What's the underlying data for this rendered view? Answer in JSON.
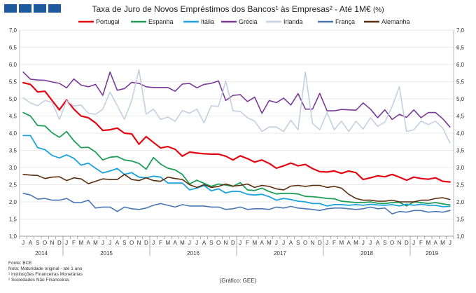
{
  "header": {
    "title_main": "Taxa de Juro de Novos Empréstimos dos Bancos¹ às Empresas² - Até 1M€",
    "title_unit": "(%)"
  },
  "footnotes": {
    "source": "Fonte: BCE",
    "note": "Nota: Maturidade original - até 1 ano",
    "fn1": "¹ Instituições Financeiras Monetárias",
    "fn2": "² Sociedades Não Financeiras"
  },
  "credit": "(Gráfico: GEE)",
  "chart_data": {
    "type": "line",
    "title": "Taxa de Juro de Novos Empréstimos dos Bancos¹ às Empresas² - Até 1M€ (%)",
    "ylim": [
      1.0,
      7.0
    ],
    "ystep": 0.5,
    "yticks": [
      "1,0",
      "1,5",
      "2,0",
      "2,5",
      "3,0",
      "3,5",
      "4,0",
      "4,5",
      "5,0",
      "5,5",
      "6,0",
      "6,5",
      "7,0"
    ],
    "months": [
      "J",
      "A",
      "S",
      "O",
      "N",
      "D",
      "J",
      "F",
      "M",
      "A",
      "M",
      "J",
      "J",
      "A",
      "S",
      "O",
      "N",
      "D",
      "J",
      "F",
      "M",
      "A",
      "M",
      "J",
      "J",
      "A",
      "S",
      "O",
      "N",
      "D",
      "J",
      "F",
      "M",
      "A",
      "M",
      "J",
      "J",
      "A",
      "S",
      "O",
      "N",
      "D",
      "J",
      "F",
      "M",
      "A",
      "M",
      "J",
      "J",
      "A",
      "S",
      "O",
      "N",
      "D",
      "J",
      "F",
      "M",
      "A",
      "M",
      "J"
    ],
    "years": [
      {
        "label": "2014",
        "start": 0,
        "end": 5
      },
      {
        "label": "2015",
        "start": 6,
        "end": 17
      },
      {
        "label": "2016",
        "start": 18,
        "end": 29
      },
      {
        "label": "2017",
        "start": 30,
        "end": 41
      },
      {
        "label": "2018",
        "start": 42,
        "end": 53
      },
      {
        "label": "2019",
        "start": 54,
        "end": 59
      }
    ],
    "series": [
      {
        "name": "Portugal",
        "color": "#e30613",
        "width": 2.2,
        "values": [
          5.47,
          5.42,
          5.2,
          5.22,
          4.95,
          4.68,
          4.97,
          4.7,
          4.5,
          4.45,
          4.3,
          4.08,
          4.1,
          4.15,
          4.0,
          3.98,
          3.68,
          3.9,
          3.73,
          3.57,
          3.61,
          3.53,
          3.33,
          3.45,
          3.42,
          3.4,
          3.39,
          3.39,
          3.33,
          3.22,
          3.34,
          3.26,
          3.16,
          3.22,
          3.12,
          2.98,
          3.05,
          3.13,
          3.05,
          3.09,
          2.97,
          2.88,
          2.87,
          2.9,
          2.83,
          2.9,
          2.85,
          2.65,
          2.7,
          2.76,
          2.73,
          2.8,
          2.72,
          2.63,
          2.72,
          2.68,
          2.66,
          2.7,
          2.6,
          2.58
        ]
      },
      {
        "name": "Espanha",
        "color": "#1e9e57",
        "width": 1.8,
        "values": [
          4.6,
          4.5,
          4.22,
          4.21,
          4.01,
          3.88,
          4.05,
          3.78,
          3.58,
          3.59,
          3.45,
          3.22,
          3.3,
          3.32,
          3.22,
          3.19,
          3.12,
          2.95,
          3.29,
          3.1,
          2.98,
          2.93,
          2.8,
          2.52,
          2.63,
          2.54,
          2.45,
          2.52,
          2.49,
          2.45,
          2.56,
          2.35,
          2.33,
          2.4,
          2.3,
          2.23,
          2.25,
          2.25,
          2.23,
          2.16,
          2.15,
          2.13,
          2.1,
          2.09,
          2.02,
          2.0,
          1.98,
          1.98,
          2.0,
          1.96,
          1.95,
          1.98,
          1.99,
          1.88,
          2.0,
          1.98,
          1.95,
          1.98,
          1.94,
          1.91
        ]
      },
      {
        "name": "Itália",
        "color": "#1aa3dc",
        "width": 1.8,
        "values": [
          3.93,
          3.93,
          3.58,
          3.52,
          3.35,
          3.28,
          3.37,
          3.27,
          3.07,
          3.13,
          2.98,
          2.84,
          2.9,
          2.97,
          2.8,
          2.85,
          2.72,
          2.7,
          2.75,
          2.72,
          2.55,
          2.55,
          2.55,
          2.35,
          2.4,
          2.48,
          2.32,
          2.38,
          2.26,
          2.31,
          2.3,
          2.22,
          2.2,
          2.22,
          2.15,
          2.05,
          2.1,
          2.07,
          2.02,
          2.0,
          1.95,
          1.95,
          1.88,
          1.92,
          1.92,
          1.9,
          1.92,
          1.9,
          1.93,
          1.91,
          1.9,
          1.92,
          1.88,
          1.93,
          1.9,
          1.93,
          1.9,
          1.9,
          1.86,
          1.87
        ]
      },
      {
        "name": "Grécia",
        "color": "#7a3a96",
        "width": 1.6,
        "values": [
          5.78,
          5.57,
          5.55,
          5.54,
          5.49,
          5.45,
          5.32,
          5.58,
          5.4,
          5.35,
          5.42,
          5.1,
          5.78,
          5.25,
          5.3,
          5.48,
          5.45,
          5.35,
          5.33,
          5.33,
          5.33,
          5.22,
          5.43,
          5.45,
          5.32,
          5.42,
          5.45,
          5.52,
          4.95,
          5.1,
          5.12,
          4.92,
          5.05,
          4.58,
          4.95,
          4.89,
          5.02,
          4.82,
          5.15,
          4.7,
          4.7,
          5.16,
          4.65,
          4.65,
          4.69,
          4.68,
          4.67,
          4.88,
          4.7,
          4.45,
          4.68,
          4.4,
          4.55,
          4.46,
          4.68,
          4.45,
          4.6,
          4.6,
          4.42,
          4.18
        ]
      },
      {
        "name": "Irlanda",
        "color": "#c3d0e0",
        "width": 1.6,
        "values": [
          5.03,
          4.88,
          4.8,
          4.95,
          4.9,
          4.4,
          4.95,
          4.79,
          4.82,
          4.58,
          4.55,
          4.7,
          5.2,
          4.8,
          4.4,
          4.95,
          5.85,
          4.55,
          4.7,
          4.4,
          4.47,
          4.35,
          4.66,
          4.58,
          4.7,
          4.3,
          4.8,
          4.78,
          5.52,
          4.65,
          4.63,
          4.45,
          4.35,
          4.05,
          4.18,
          4.18,
          4.05,
          4.38,
          4.1,
          5.78,
          4.28,
          4.1,
          4.6,
          4.1,
          4.35,
          4.05,
          4.35,
          4.12,
          4.45,
          4.2,
          4.32,
          4.78,
          5.35,
          4.05,
          4.1,
          4.35,
          4.25,
          4.35,
          4.15,
          3.72
        ]
      },
      {
        "name": "França",
        "color": "#4a77b4",
        "width": 1.6,
        "values": [
          2.25,
          2.2,
          2.08,
          2.1,
          2.05,
          2.05,
          2.1,
          1.98,
          1.98,
          2.05,
          1.82,
          1.85,
          1.85,
          1.72,
          1.85,
          1.8,
          1.78,
          1.82,
          1.9,
          1.95,
          1.9,
          1.85,
          1.92,
          1.88,
          1.88,
          1.88,
          1.85,
          1.85,
          1.78,
          1.8,
          1.85,
          1.78,
          1.8,
          1.8,
          1.78,
          1.85,
          1.82,
          1.87,
          1.82,
          1.8,
          1.78,
          1.75,
          1.8,
          1.82,
          1.82,
          1.8,
          1.78,
          1.8,
          1.85,
          1.8,
          1.82,
          1.65,
          1.72,
          1.7,
          1.75,
          1.75,
          1.7,
          1.72,
          1.7,
          1.75
        ]
      },
      {
        "name": "Alemanha",
        "color": "#5a2e0e",
        "width": 1.6,
        "values": [
          2.8,
          2.78,
          2.77,
          2.68,
          2.72,
          2.73,
          2.62,
          2.7,
          2.67,
          2.53,
          2.6,
          2.67,
          2.65,
          2.65,
          2.8,
          2.65,
          2.62,
          2.7,
          2.62,
          2.6,
          2.72,
          2.68,
          2.65,
          2.5,
          2.42,
          2.5,
          2.42,
          2.45,
          2.52,
          2.46,
          2.48,
          2.52,
          2.42,
          2.48,
          2.45,
          2.38,
          2.35,
          2.46,
          2.48,
          2.45,
          2.48,
          2.48,
          2.42,
          2.45,
          2.4,
          2.22,
          2.1,
          2.05,
          2.05,
          2.02,
          2.02,
          2.05,
          2.0,
          2.0,
          2.0,
          2.05,
          2.05,
          2.1,
          2.12,
          2.07
        ]
      }
    ]
  }
}
